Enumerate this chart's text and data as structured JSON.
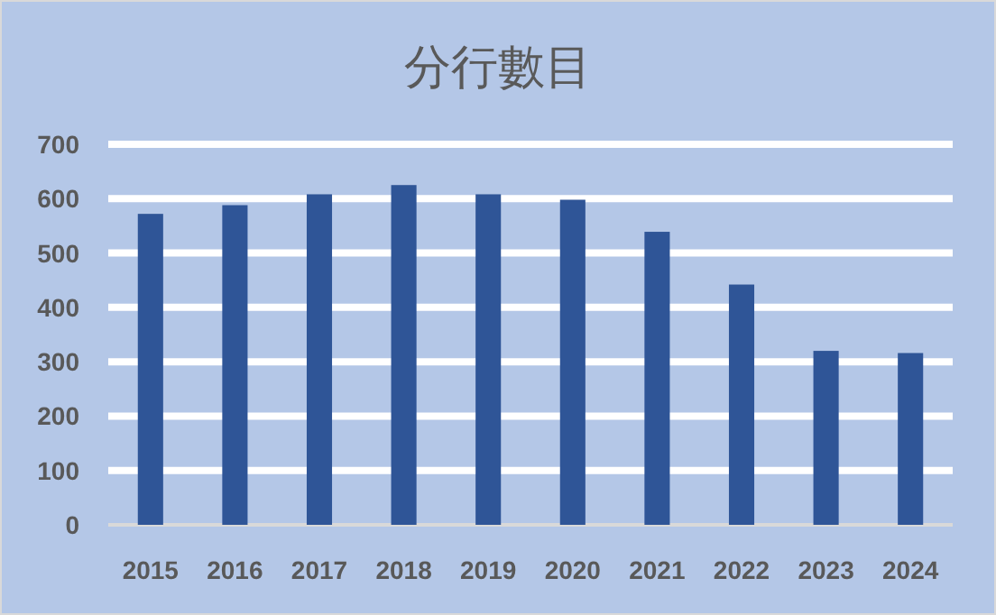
{
  "chart_data": {
    "type": "bar",
    "title": "分行數目",
    "categories": [
      "2015",
      "2016",
      "2017",
      "2018",
      "2019",
      "2020",
      "2021",
      "2022",
      "2023",
      "2024"
    ],
    "values": [
      572,
      588,
      608,
      625,
      608,
      598,
      539,
      442,
      320,
      316
    ],
    "color": "#2f5597",
    "ylim": [
      0,
      700
    ],
    "yticks": [
      0,
      100,
      200,
      300,
      400,
      500,
      600,
      700
    ],
    "grid": "y"
  }
}
